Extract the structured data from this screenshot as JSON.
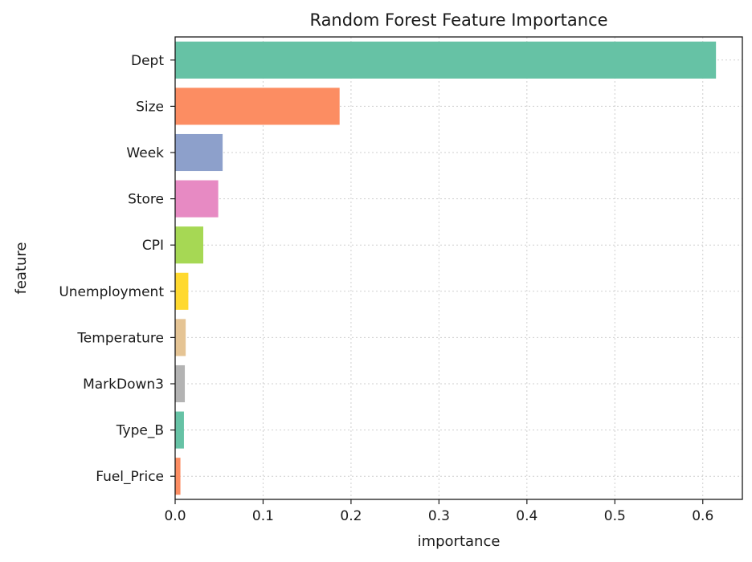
{
  "chart_data": {
    "type": "bar",
    "orientation": "horizontal",
    "title": "Random Forest Feature Importance",
    "xlabel": "importance",
    "ylabel": "feature",
    "xlim": [
      0,
      0.645
    ],
    "xticks": [
      0.0,
      0.1,
      0.2,
      0.3,
      0.4,
      0.5,
      0.6
    ],
    "xtick_labels": [
      "0.0",
      "0.1",
      "0.2",
      "0.3",
      "0.4",
      "0.5",
      "0.6"
    ],
    "grid": true,
    "categories": [
      "Dept",
      "Size",
      "Week",
      "Store",
      "CPI",
      "Unemployment",
      "Temperature",
      "MarkDown3",
      "Type_B",
      "Fuel_Price"
    ],
    "values": [
      0.615,
      0.187,
      0.054,
      0.049,
      0.032,
      0.015,
      0.012,
      0.011,
      0.01,
      0.006
    ],
    "colors": [
      "#66c2a5",
      "#fc8d62",
      "#8da0cb",
      "#e78ac3",
      "#a6d854",
      "#ffd92f",
      "#e5c494",
      "#b3b3b3",
      "#66c2a5",
      "#fc8d62"
    ]
  }
}
